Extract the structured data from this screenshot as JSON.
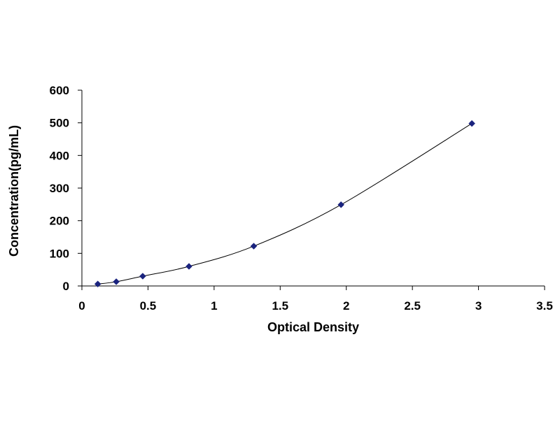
{
  "chart_data": {
    "type": "scatter",
    "title": "",
    "xlabel": "Optical Density",
    "ylabel": "Concentration(pg/mL)",
    "xlim": [
      0,
      3.5
    ],
    "ylim": [
      0,
      600
    ],
    "x_ticks": [
      0,
      0.5,
      1,
      1.5,
      2,
      2.5,
      3,
      3.5
    ],
    "x_tick_labels": [
      "0",
      "0.5",
      "1",
      "1.5",
      "2",
      "2.5",
      "3",
      "3.5"
    ],
    "y_ticks": [
      0,
      100,
      200,
      300,
      400,
      500,
      600
    ],
    "y_tick_labels": [
      "0",
      "100",
      "200",
      "300",
      "400",
      "500",
      "600"
    ],
    "grid": false,
    "legend": "none",
    "series": [
      {
        "x": [
          0.12,
          0.26,
          0.46,
          0.81,
          1.3,
          1.96,
          2.95
        ],
        "y": [
          6,
          13,
          30,
          60,
          122,
          249,
          498
        ],
        "marker": "diamond",
        "color": "#1a237e",
        "line": "smooth",
        "line_color": "#000000"
      }
    ]
  }
}
